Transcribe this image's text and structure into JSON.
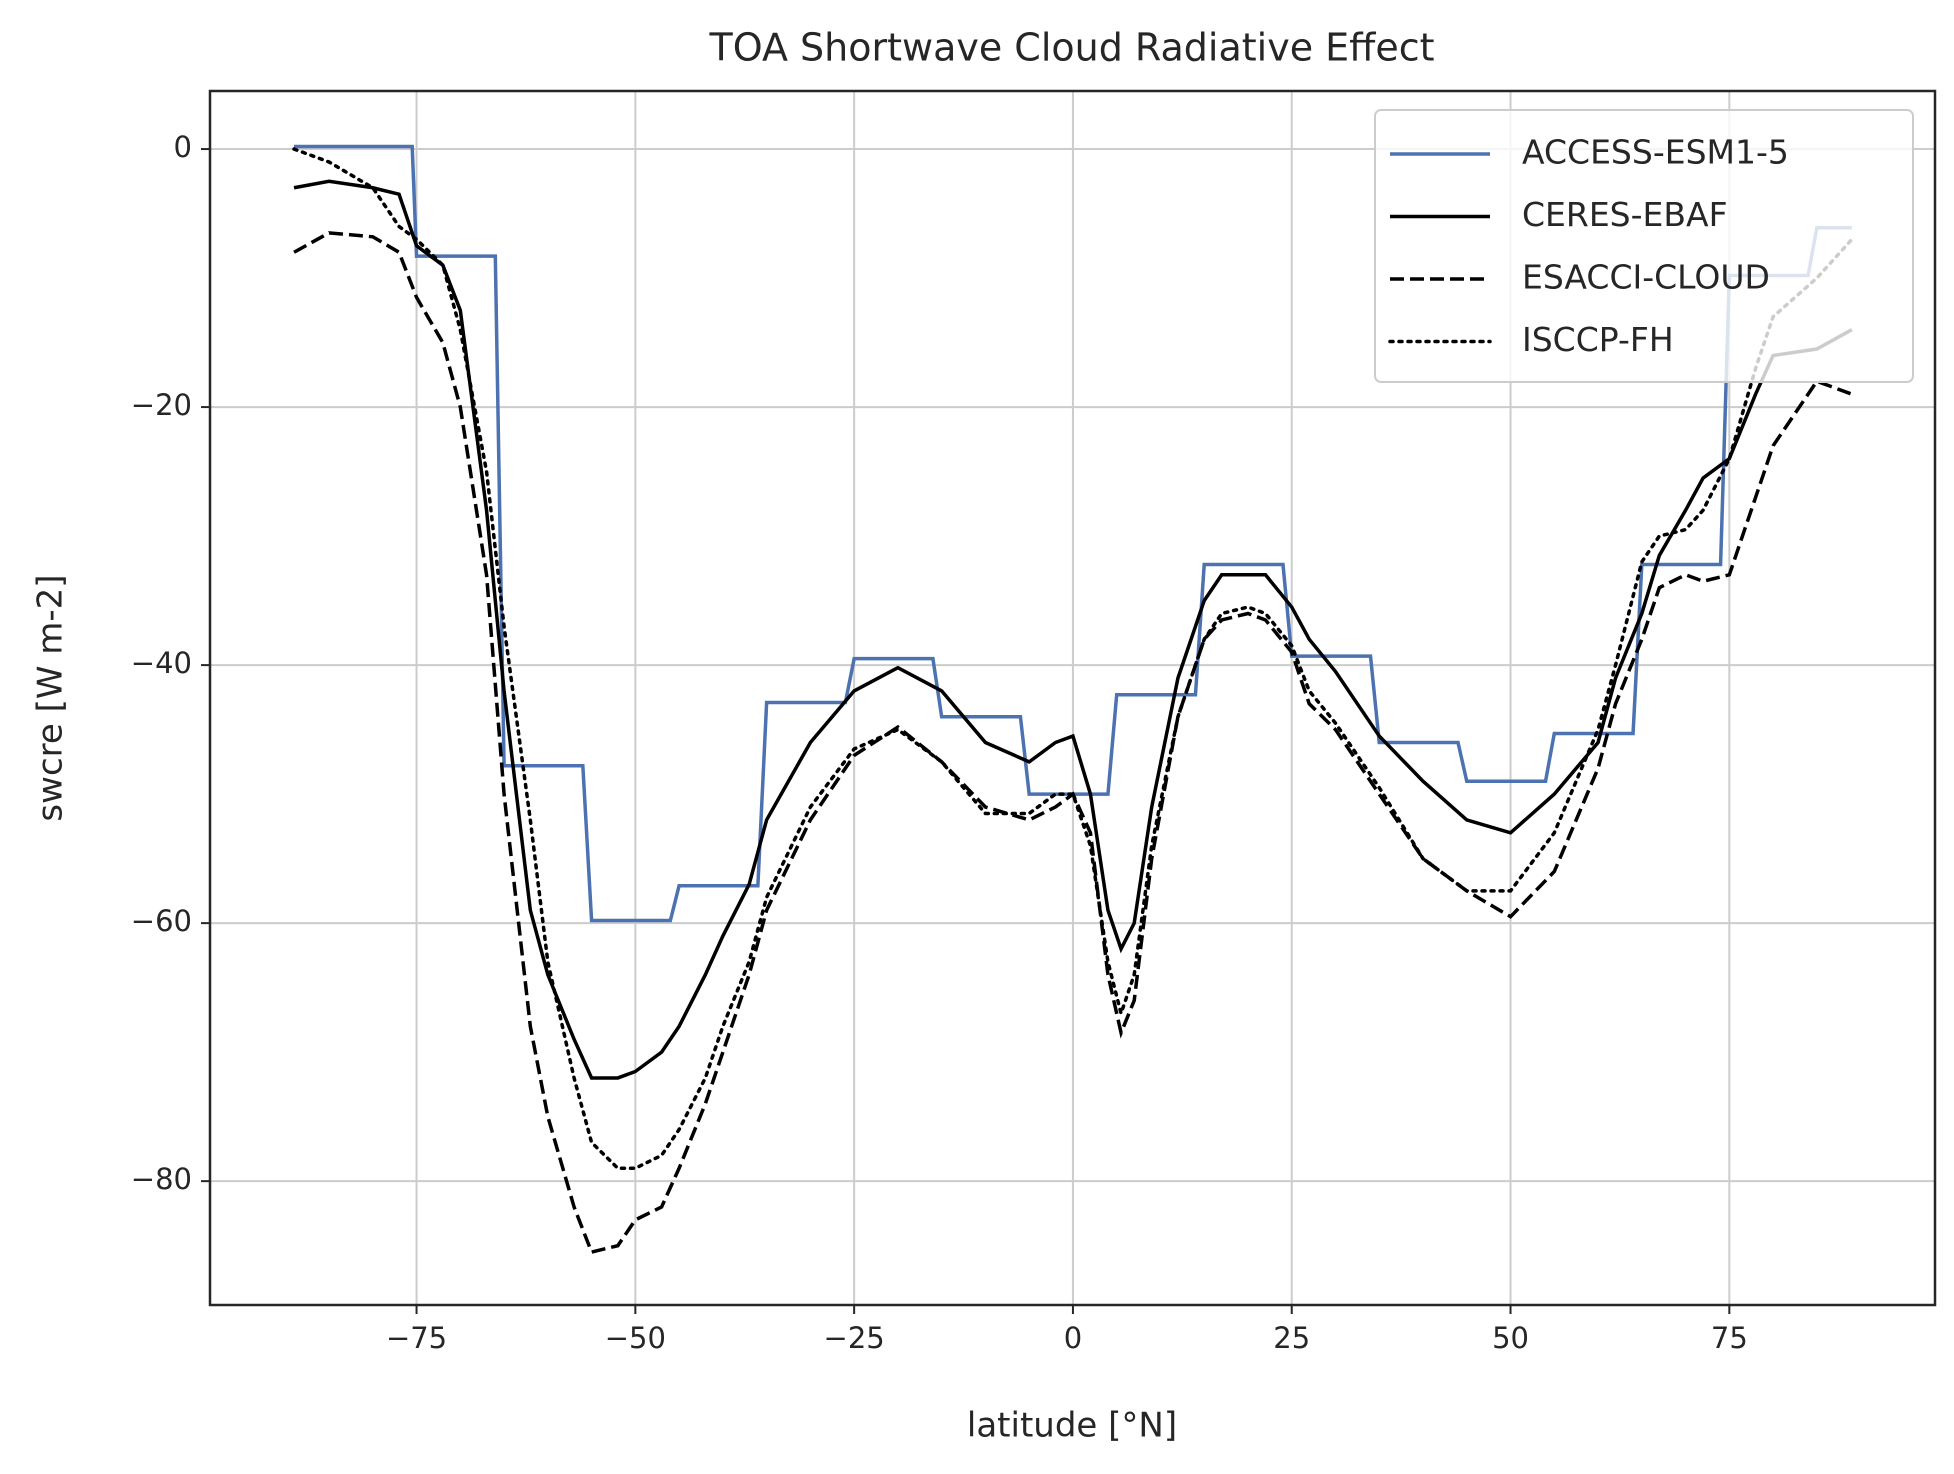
{
  "chart_data": {
    "type": "line",
    "title": "TOA Shortwave Cloud Radiative Effect",
    "xlabel": "latitude [°N]",
    "ylabel": "swcre [W m-2]",
    "xlim": [
      -98.6,
      98.5
    ],
    "ylim": [
      -89.6,
      4.5
    ],
    "xticks": [
      {
        "value": -75,
        "label": "−75"
      },
      {
        "value": -50,
        "label": "−50"
      },
      {
        "value": -25,
        "label": "−25"
      },
      0,
      25,
      50,
      75
    ],
    "yticks": [
      0,
      {
        "value": -20,
        "label": "−20"
      },
      {
        "value": -40,
        "label": "−40"
      },
      {
        "value": -60,
        "label": "−60"
      },
      {
        "value": -80,
        "label": "−80"
      }
    ],
    "grid": true,
    "legend": "upper right",
    "series": [
      {
        "name": "ACCESS-ESM1-5",
        "color": "#4c72b0",
        "linestyle": "solid",
        "x": [
          -89,
          -75.5,
          -75,
          -66,
          -65,
          -56,
          -55,
          -46,
          -45,
          -36,
          -35,
          -26,
          -25,
          -16,
          -15,
          -6,
          -5,
          4,
          5,
          14,
          15,
          24,
          25,
          34,
          35,
          44,
          45,
          54,
          55,
          64,
          65,
          74,
          75,
          84,
          85,
          89
        ],
        "values": [
          0.2,
          0.2,
          -8.3,
          -8.3,
          -47.8,
          -47.8,
          -59.8,
          -59.8,
          -57.1,
          -57.1,
          -42.9,
          -42.9,
          -39.5,
          -39.5,
          -44,
          -44,
          -50,
          -50,
          -42.3,
          -42.3,
          -32.2,
          -32.2,
          -39.3,
          -39.3,
          -46,
          -46,
          -49,
          -49,
          -45.3,
          -45.3,
          -32.2,
          -32.2,
          -9.8,
          -9.8,
          -6.1,
          -6.1
        ]
      },
      {
        "name": "CERES-EBAF",
        "color": "#000000",
        "linestyle": "solid",
        "x": [
          -89,
          -85,
          -80,
          -77,
          -75,
          -72,
          -70,
          -67,
          -65,
          -62,
          -60,
          -57,
          -55,
          -52,
          -50,
          -47,
          -45,
          -42,
          -40,
          -37,
          -35,
          -30,
          -25,
          -20,
          -15,
          -10,
          -5,
          -2,
          0,
          2,
          4,
          5.5,
          7,
          9,
          12,
          15,
          17,
          20,
          22,
          25,
          27,
          30,
          35,
          40,
          45,
          50,
          55,
          60,
          62,
          65,
          67,
          70,
          72,
          75,
          78,
          80,
          85,
          89
        ],
        "values": [
          -3,
          -2.5,
          -3,
          -3.5,
          -7.5,
          -9,
          -12.5,
          -28,
          -42,
          -59,
          -64,
          -69,
          -72,
          -72,
          -71.5,
          -70,
          -68,
          -64,
          -61,
          -57,
          -52,
          -46,
          -42,
          -40.2,
          -42,
          -46,
          -47.5,
          -46,
          -45.5,
          -50,
          -59,
          -62,
          -60,
          -51,
          -41,
          -35,
          -33,
          -33,
          -33,
          -35.5,
          -38,
          -40.5,
          -45.5,
          -49,
          -52,
          -53,
          -50,
          -46,
          -41,
          -36,
          -31.5,
          -28,
          -25.5,
          -24,
          -19,
          -16,
          -15.5,
          -14
        ]
      },
      {
        "name": "ESACCI-CLOUD",
        "color": "#000000",
        "linestyle": "dashed",
        "x": [
          -89,
          -85,
          -80,
          -77,
          -75,
          -72,
          -70,
          -67,
          -65,
          -62,
          -60,
          -57,
          -55,
          -52,
          -50,
          -47,
          -45,
          -42,
          -40,
          -37,
          -35,
          -30,
          -25,
          -20,
          -15,
          -10,
          -5,
          -2,
          0,
          2,
          4,
          5.5,
          7,
          9,
          12,
          15,
          17,
          20,
          22,
          25,
          27,
          30,
          35,
          40,
          45,
          50,
          55,
          60,
          62,
          65,
          67,
          70,
          72,
          75,
          78,
          80,
          85,
          89
        ],
        "values": [
          -8,
          -6.5,
          -6.8,
          -8,
          -11.5,
          -15,
          -20,
          -33,
          -50,
          -68,
          -75,
          -82,
          -85.5,
          -85,
          -83,
          -82,
          -79,
          -74,
          -70,
          -64,
          -59,
          -52,
          -47,
          -44.8,
          -47.5,
          -51,
          -52,
          -51,
          -50,
          -53,
          -64,
          -68.5,
          -66,
          -55,
          -44,
          -38,
          -36.5,
          -36,
          -36.5,
          -39,
          -43,
          -45,
          -50,
          -55,
          -57.5,
          -59.5,
          -56,
          -48,
          -43,
          -38,
          -34,
          -33,
          -33.5,
          -33,
          -27,
          -23,
          -18,
          -19
        ]
      },
      {
        "name": "ISCCP-FH",
        "color": "#000000",
        "linestyle": "dotted",
        "x": [
          -89,
          -85,
          -80,
          -77,
          -75,
          -72,
          -70,
          -67,
          -65,
          -62,
          -60,
          -57,
          -55,
          -52,
          -50,
          -47,
          -45,
          -42,
          -40,
          -37,
          -35,
          -30,
          -25,
          -20,
          -15,
          -10,
          -5,
          -2,
          0,
          2,
          4,
          5.5,
          7,
          9,
          12,
          15,
          17,
          20,
          22,
          25,
          27,
          30,
          35,
          40,
          45,
          50,
          55,
          60,
          62,
          65,
          67,
          70,
          72,
          75,
          78,
          80,
          85,
          89
        ],
        "values": [
          0,
          -1,
          -3,
          -6,
          -7,
          -9,
          -14,
          -25,
          -37,
          -52,
          -63,
          -72,
          -77,
          -79,
          -79,
          -78,
          -76,
          -72,
          -68,
          -63,
          -58,
          -51,
          -46.5,
          -45,
          -47.5,
          -51.5,
          -51.5,
          -50,
          -50,
          -54,
          -63,
          -67,
          -64,
          -54,
          -44,
          -38,
          -36,
          -35.5,
          -36,
          -38.5,
          -42,
          -44.5,
          -49.5,
          -55,
          -57.5,
          -57.5,
          -53,
          -45,
          -40,
          -32,
          -30,
          -29.5,
          -28,
          -24,
          -17,
          -13,
          -10,
          -7
        ]
      }
    ]
  }
}
